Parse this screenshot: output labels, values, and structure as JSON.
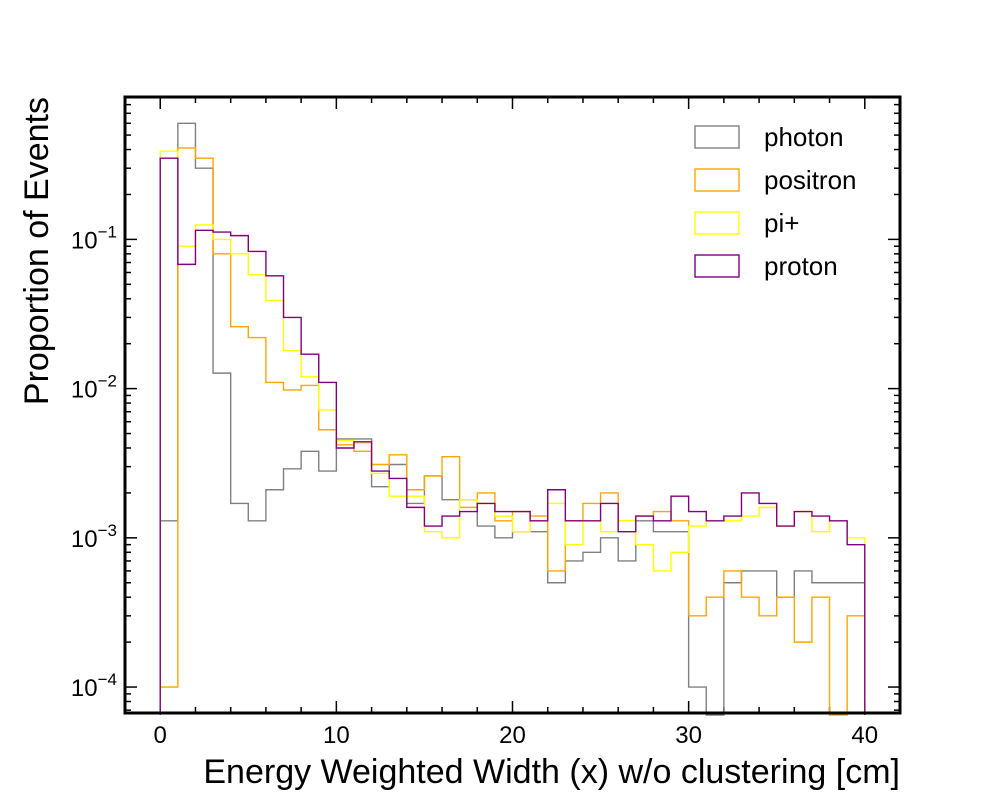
{
  "chart_data": {
    "type": "step-histogram",
    "xlabel": "Energy Weighted Width (x) w/o clustering [cm]",
    "ylabel": "Proportion of Events",
    "xlim": [
      -2,
      42
    ],
    "ylim": [
      6.7e-05,
      0.9
    ],
    "yscale": "log",
    "x_ticks": [
      0,
      10,
      20,
      30,
      40
    ],
    "y_ticks": [
      {
        "value": 0.0001,
        "base": "10",
        "exp": "−4"
      },
      {
        "value": 0.001,
        "base": "10",
        "exp": "−3"
      },
      {
        "value": 0.01,
        "base": "10",
        "exp": "−2"
      },
      {
        "value": 0.1,
        "base": "10",
        "exp": "−1"
      }
    ],
    "bin_edges": [
      0,
      1,
      2,
      3,
      4,
      5,
      6,
      7,
      8,
      9,
      10,
      11,
      12,
      13,
      14,
      15,
      16,
      17,
      18,
      19,
      20,
      21,
      22,
      23,
      24,
      25,
      26,
      27,
      28,
      29,
      30,
      31,
      32,
      33,
      34,
      35,
      36,
      37,
      38,
      39,
      40
    ],
    "legend_position": "top-right",
    "series": [
      {
        "name": "photon",
        "color": "#808080",
        "values": [
          0.0013,
          0.6,
          0.3,
          0.0127,
          0.0017,
          0.0013,
          0.0021,
          0.0029,
          0.0038,
          0.0028,
          0.0046,
          0.0046,
          0.0022,
          0.0031,
          0.0017,
          0.0026,
          0.0018,
          0.0018,
          0.0012,
          0.001,
          0.0011,
          0.0011,
          0.0005,
          0.0007,
          0.0008,
          0.001,
          0.0007,
          0.0013,
          0.0011,
          0.0011,
          0.0001,
          5e-05,
          0.0005,
          0.0006,
          0.0006,
          0.0004,
          0.0006,
          0.0005,
          0.0005,
          0.0005
        ]
      },
      {
        "name": "positron",
        "color": "#ffa500",
        "values": [
          0.0001,
          0.41,
          0.35,
          0.08,
          0.026,
          0.022,
          0.011,
          0.0098,
          0.0105,
          0.0053,
          0.0042,
          0.0038,
          0.0031,
          0.0036,
          0.0021,
          0.0026,
          0.0035,
          0.0016,
          0.002,
          0.0013,
          0.0015,
          0.0014,
          0.0006,
          0.0013,
          0.0017,
          0.002,
          0.0013,
          0.0014,
          0.0015,
          0.0013,
          0.0003,
          0.0004,
          0.0006,
          0.0004,
          0.0003,
          0.0004,
          0.0002,
          0.0004,
          5e-05,
          0.0003
        ]
      },
      {
        "name": "pi+",
        "color": "#ffff00",
        "values": [
          0.39,
          0.09,
          0.125,
          0.1,
          0.08,
          0.058,
          0.039,
          0.018,
          0.012,
          0.0072,
          0.0045,
          0.0043,
          0.0027,
          0.0019,
          0.0019,
          0.0011,
          0.001,
          0.0018,
          0.0017,
          0.0014,
          0.0011,
          0.0013,
          0.0017,
          0.0009,
          0.0013,
          0.0011,
          0.0013,
          0.0009,
          0.0006,
          0.0008,
          0.0012,
          0.0013,
          0.0013,
          0.0014,
          0.0016,
          0.0012,
          0.0015,
          0.0011,
          0.0013,
          0.001
        ]
      },
      {
        "name": "proton",
        "color": "#800080",
        "values": [
          0.35,
          0.068,
          0.115,
          0.112,
          0.106,
          0.083,
          0.057,
          0.03,
          0.017,
          0.011,
          0.004,
          0.0044,
          0.0028,
          0.0025,
          0.0016,
          0.0012,
          0.0014,
          0.0015,
          0.0017,
          0.0015,
          0.0015,
          0.0013,
          0.0021,
          0.0013,
          0.0013,
          0.0017,
          0.0011,
          0.0014,
          0.0013,
          0.0019,
          0.0015,
          0.0013,
          0.0014,
          0.002,
          0.0017,
          0.0012,
          0.0015,
          0.0014,
          0.0013,
          0.0009
        ]
      }
    ]
  }
}
